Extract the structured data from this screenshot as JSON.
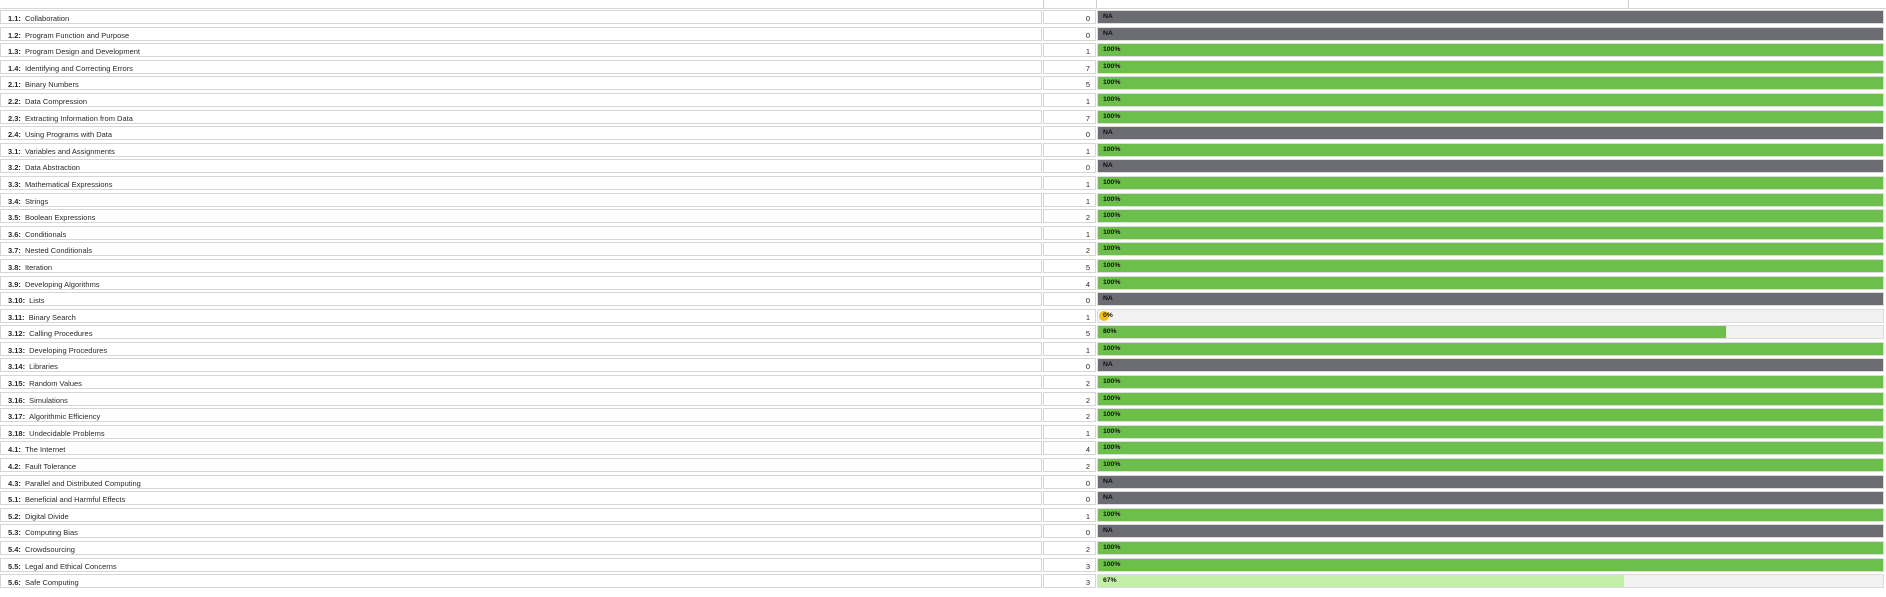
{
  "colors": {
    "complete": "#6cbf4b",
    "partial": "#c2f0a8",
    "na": "#6b6b72",
    "zero": "#f2c200",
    "track": "#f2f2f2"
  },
  "rows": [
    {
      "code": "1.1:",
      "name": "Collaboration",
      "count": "0",
      "label": "NA",
      "percent": null
    },
    {
      "code": "1.2:",
      "name": "Program Function and Purpose",
      "count": "0",
      "label": "NA",
      "percent": null
    },
    {
      "code": "1.3:",
      "name": "Program Design and Development",
      "count": "1",
      "label": "100%",
      "percent": 100
    },
    {
      "code": "1.4:",
      "name": "Identifying and Correcting Errors",
      "count": "7",
      "label": "100%",
      "percent": 100
    },
    {
      "code": "2.1:",
      "name": "Binary Numbers",
      "count": "5",
      "label": "100%",
      "percent": 100
    },
    {
      "code": "2.2:",
      "name": "Data Compression",
      "count": "1",
      "label": "100%",
      "percent": 100
    },
    {
      "code": "2.3:",
      "name": "Extracting Information from Data",
      "count": "7",
      "label": "100%",
      "percent": 100
    },
    {
      "code": "2.4:",
      "name": "Using Programs with Data",
      "count": "0",
      "label": "NA",
      "percent": null
    },
    {
      "code": "3.1:",
      "name": "Variables and Assignments",
      "count": "1",
      "label": "100%",
      "percent": 100
    },
    {
      "code": "3.2:",
      "name": "Data Abstraction",
      "count": "0",
      "label": "NA",
      "percent": null
    },
    {
      "code": "3.3:",
      "name": "Mathematical Expressions",
      "count": "1",
      "label": "100%",
      "percent": 100
    },
    {
      "code": "3.4:",
      "name": "Strings",
      "count": "1",
      "label": "100%",
      "percent": 100
    },
    {
      "code": "3.5:",
      "name": "Boolean Expressions",
      "count": "2",
      "label": "100%",
      "percent": 100
    },
    {
      "code": "3.6:",
      "name": "Conditionals",
      "count": "1",
      "label": "100%",
      "percent": 100
    },
    {
      "code": "3.7:",
      "name": "Nested Conditionals",
      "count": "2",
      "label": "100%",
      "percent": 100
    },
    {
      "code": "3.8:",
      "name": "Iteration",
      "count": "5",
      "label": "100%",
      "percent": 100
    },
    {
      "code": "3.9:",
      "name": "Developing Algorithms",
      "count": "4",
      "label": "100%",
      "percent": 100
    },
    {
      "code": "3.10:",
      "name": "Lists",
      "count": "0",
      "label": "NA",
      "percent": null
    },
    {
      "code": "3.11:",
      "name": "Binary Search",
      "count": "1",
      "label": "0%",
      "percent": 0
    },
    {
      "code": "3.12:",
      "name": "Calling Procedures",
      "count": "5",
      "label": "80%",
      "percent": 80
    },
    {
      "code": "3.13:",
      "name": "Developing Procedures",
      "count": "1",
      "label": "100%",
      "percent": 100
    },
    {
      "code": "3.14:",
      "name": "Libraries",
      "count": "0",
      "label": "NA",
      "percent": null
    },
    {
      "code": "3.15:",
      "name": "Random Values",
      "count": "2",
      "label": "100%",
      "percent": 100
    },
    {
      "code": "3.16:",
      "name": "Simulations",
      "count": "2",
      "label": "100%",
      "percent": 100
    },
    {
      "code": "3.17:",
      "name": "Algorithmic Efficiency",
      "count": "2",
      "label": "100%",
      "percent": 100
    },
    {
      "code": "3.18:",
      "name": "Undecidable Problems",
      "count": "1",
      "label": "100%",
      "percent": 100
    },
    {
      "code": "4.1:",
      "name": "The Internet",
      "count": "4",
      "label": "100%",
      "percent": 100
    },
    {
      "code": "4.2:",
      "name": "Fault Tolerance",
      "count": "2",
      "label": "100%",
      "percent": 100
    },
    {
      "code": "4.3:",
      "name": "Parallel and Distributed Computing",
      "count": "0",
      "label": "NA",
      "percent": null
    },
    {
      "code": "5.1:",
      "name": "Beneficial and Harmful Effects",
      "count": "0",
      "label": "NA",
      "percent": null
    },
    {
      "code": "5.2:",
      "name": "Digital Divide",
      "count": "1",
      "label": "100%",
      "percent": 100
    },
    {
      "code": "5.3:",
      "name": "Computing Bias",
      "count": "0",
      "label": "NA",
      "percent": null
    },
    {
      "code": "5.4:",
      "name": "Crowdsourcing",
      "count": "2",
      "label": "100%",
      "percent": 100
    },
    {
      "code": "5.5:",
      "name": "Legal and Ethical Concerns",
      "count": "3",
      "label": "100%",
      "percent": 100
    },
    {
      "code": "5.6:",
      "name": "Safe Computing",
      "count": "3",
      "label": "67%",
      "percent": 67
    }
  ]
}
